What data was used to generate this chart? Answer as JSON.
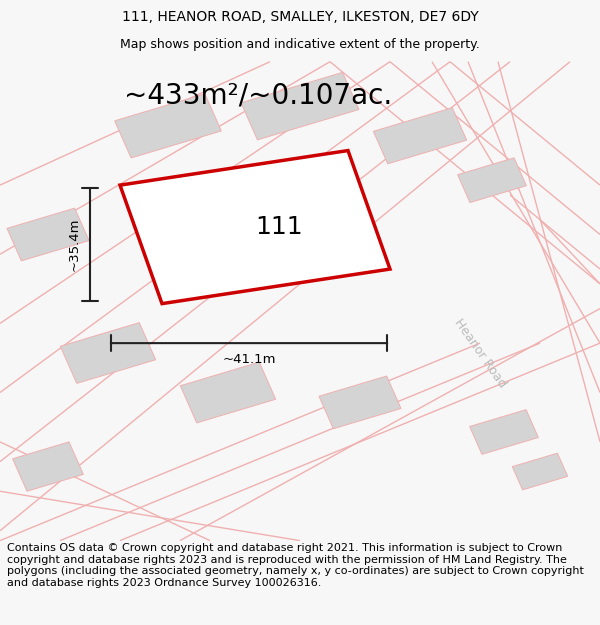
{
  "title_line1": "111, HEANOR ROAD, SMALLEY, ILKESTON, DE7 6DY",
  "title_line2": "Map shows position and indicative extent of the property.",
  "area_text": "~433m²/~0.107ac.",
  "label_111": "111",
  "label_width": "~41.1m",
  "label_height": "~35.4m",
  "road_label": "Heanor Road",
  "footer_text": "Contains OS data © Crown copyright and database right 2021. This information is subject to Crown copyright and database rights 2023 and is reproduced with the permission of HM Land Registry. The polygons (including the associated geometry, namely x, y co-ordinates) are subject to Crown copyright and database rights 2023 Ordnance Survey 100026316.",
  "bg_color": "#f7f7f7",
  "map_bg": "#ffffff",
  "plot_fill": "#ffffff",
  "plot_edge": "#cc0000",
  "neighbor_fill": "#d4d4d4",
  "neighbor_edge": "#f0b0b0",
  "road_line_color": "#f0b0b0",
  "measure_color": "#222222",
  "title_fontsize": 10,
  "subtitle_fontsize": 9,
  "area_fontsize": 20,
  "label_fontsize": 18,
  "measure_fontsize": 9.5,
  "footer_fontsize": 8,
  "road_label_color": "#bbbbbb",
  "road_label_fontsize": 9
}
